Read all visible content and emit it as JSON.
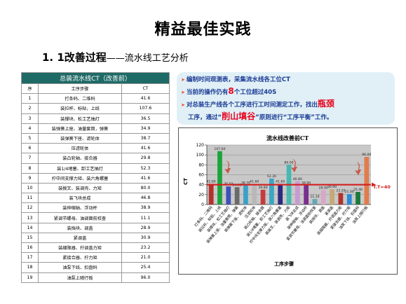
{
  "page": {
    "title": "精益最佳实践",
    "subtitle_num": "1. 1改善过程",
    "subtitle_rest": "——流水线工艺分析"
  },
  "table": {
    "caption": "总装流水线CT（改善前）",
    "headers": [
      "序",
      "工序步骤",
      "CT"
    ],
    "rows": [
      [
        "1",
        "打条码、二维码",
        "41.6"
      ],
      [
        "2",
        "装拉杆、标贴，上线",
        "107.6"
      ],
      [
        "3",
        "装撑块、松工艺抽灯",
        "36.5"
      ],
      [
        "4",
        "装弹簧上座、油量套筒，弹簧",
        "34.9"
      ],
      [
        "5",
        "装弹簧下座、滤轮体",
        "38.7"
      ],
      [
        "6",
        "压滤轮体",
        "41.6"
      ],
      [
        "7",
        "装凸轮轴、接合器",
        "29.8"
      ],
      [
        "8",
        "装1/4堵塞、卸工艺抽灯",
        "52.3"
      ],
      [
        "9",
        "拧中间支撑力矩、装六角螺塞",
        "41.6"
      ],
      [
        "10",
        "装拨叉、装调壳、力矩",
        "80.0"
      ],
      [
        "11",
        "装飞块总成",
        "46.8"
      ],
      [
        "12",
        "装伸缩轴、浮动杆",
        "38.9"
      ],
      [
        "13",
        "紧调节螺母、油调面前校查",
        "11.1"
      ],
      [
        "14",
        "装挡块、调盖",
        "28.9"
      ],
      [
        "15",
        "紧调盖",
        "30.9"
      ],
      [
        "16",
        "装细限器、拧调盖力矩",
        "23.2"
      ],
      [
        "17",
        "紧接合器、拧力矩",
        "21.0"
      ],
      [
        "18",
        "油泵下线、扣盘码",
        "25.4"
      ],
      [
        "19",
        "油泵上随行板",
        "96.0"
      ]
    ]
  },
  "callout": {
    "line1": "编制时间观测表，采集流水线各工位CT",
    "line2_a": "当前的操作仍有",
    "line2_b": "8",
    "line2_c": "个工位超过40S",
    "line3_a": "对总装生产线各个工序进行工时间测定工作，找出",
    "line3_b": "瓶颈",
    "line4_a": "工序，通过“",
    "line4_b": "削山填谷",
    "line4_c": "”原则进行“工序平衡”工作。"
  },
  "chart_data": {
    "type": "bar",
    "title": "流水线改善前CT",
    "xlabel": "工序步骤",
    "ylabel": "CT",
    "ylim": [
      0,
      120
    ],
    "yticks": [
      0,
      20,
      40,
      60,
      80,
      100,
      120
    ],
    "takt_label": "T.T=40",
    "takt_value": 40,
    "categories": [
      "打条码、二维码",
      "装拉杆、标贴，上线",
      "装撑块、松工艺抽灯",
      "装弹簧上座、油量套筒，弹簧",
      "装弹簧下座、滤轮体",
      "压滤轮体",
      "装凸轮轴、接合器",
      "装1/4堵塞、卸工艺抽灯",
      "拧中间支撑力矩、装六角螺塞",
      "装拨叉、装调壳、力矩",
      "装飞块总成",
      "装伸缩轴、浮动杆",
      "紧调节螺母、油调面前校查",
      "装挡块、调盖",
      "紧调盖",
      "装细限器、拧调盖力矩",
      "紧接合器、拧力矩",
      "油泵下线、扣盘码",
      "油泵上随行板"
    ],
    "values": [
      41.6,
      107.6,
      36.5,
      34.9,
      38.7,
      41.6,
      29.8,
      52.3,
      41.6,
      80.0,
      46.8,
      38.9,
      11.1,
      28.9,
      30.9,
      23.2,
      21.0,
      25.4,
      96.0
    ],
    "value_labels": [
      "41.60",
      "107.60",
      "36.50",
      "34.90",
      "38.70",
      "41.60",
      "29.80",
      "52.30",
      "41.60",
      "80.00",
      "46.80",
      "38.90",
      "11.10",
      "28.90",
      "30.90",
      "23.20",
      "21.00",
      "25.40",
      "96.00"
    ],
    "colors": {
      "bars": [
        "#b2312b",
        "#1ca43c",
        "#3d51b8",
        "#6a6a6a",
        "#3aa0c8",
        "#b8b8b8",
        "#c43d3d",
        "#3aa6c3",
        "#2a2a80",
        "#48b8b0",
        "#c89bd0",
        "#7a2e8e",
        "#64a6b8",
        "#d8a8c8",
        "#c8a878",
        "#b2312b",
        "#2a8ad8",
        "#1a7a3a",
        "#e07c4c"
      ],
      "line": "#d42020",
      "arrow": "#c64b3a",
      "plot_bg": "#c8c8c8"
    },
    "grid": true
  }
}
